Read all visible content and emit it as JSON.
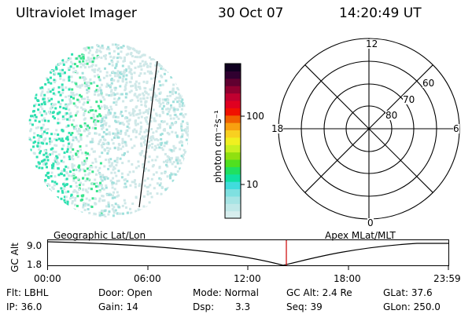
{
  "header": {
    "title": "Ultraviolet Imager",
    "date": "30 Oct 07",
    "time": "14:20:49 UT"
  },
  "colorbar": {
    "unit_label": "photon cm⁻²s⁻¹",
    "tick_labels": [
      "100",
      "10"
    ],
    "colors": [
      "#d7eeee",
      "#c0e8e8",
      "#a6e4e4",
      "#7fe0e0",
      "#40dcdc",
      "#10e0a0",
      "#20e060",
      "#50e020",
      "#90e010",
      "#c8f020",
      "#f0f020",
      "#f8d020",
      "#f8a010",
      "#f06000",
      "#f01000",
      "#e00020",
      "#c00030",
      "#900030",
      "#600030",
      "#300030",
      "#100020"
    ]
  },
  "polar": {
    "labels": {
      "top": "12",
      "left": "18",
      "right": "6",
      "bottom": "0",
      "r60": "60",
      "r70": "70",
      "r80": "80"
    }
  },
  "globe": {
    "colors": [
      "#cfe8e8",
      "#a0e0dc",
      "#2ee0b0",
      "#38e48c"
    ]
  },
  "altitude": {
    "axis_label": "GC Alt",
    "y_ticks": [
      "9.0",
      "1.8"
    ],
    "left_title": "Geographic Lat/Lon",
    "right_title": "Apex MLat/MLT",
    "x_ticks": [
      "00:00",
      "06:00",
      "12:00",
      "18:00",
      "23:59"
    ],
    "marker_color": "#cc0000"
  },
  "status": {
    "filter": "Flt: LBHL",
    "ip": "IP: 36.0",
    "door": "Door: Open",
    "gain": "Gain: 14",
    "mode": "Mode: Normal",
    "dsp_label": "Dsp:",
    "dsp_value": "3.3",
    "gc_alt": "GC Alt: 2.4 Re",
    "seq": "Seq: 39",
    "glat": "GLat:  37.6",
    "glon": "GLon: 250.0"
  }
}
